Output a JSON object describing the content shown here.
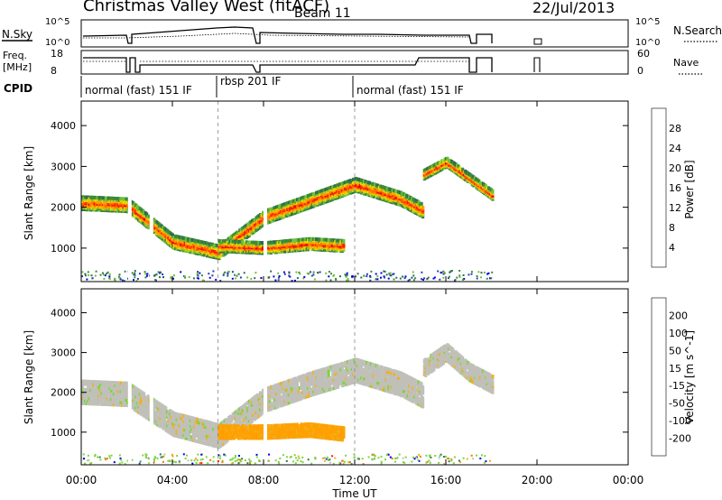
{
  "header": {
    "title": "Christmas Valley West (fitACF)",
    "beam": "Beam 11",
    "date": "22/Jul/2013"
  },
  "panels": {
    "nsky": {
      "left_label": "N.Sky",
      "right_label": "N.Search",
      "left_ticks": [
        "10^5",
        "10^0"
      ],
      "right_ticks": [
        "10^5",
        "10^0"
      ]
    },
    "freq": {
      "left_label_1": "Freq.",
      "left_label_2": "[MHz]",
      "right_label": "Nave",
      "left_ticks": [
        "18",
        "8"
      ],
      "right_ticks": [
        "60",
        "0"
      ]
    },
    "cpid": {
      "label": "CPID",
      "modes": [
        {
          "name": "normal (fast) 151 IF",
          "start_hour": 0,
          "end_hour": 6
        },
        {
          "name": "rbsp 201 IF",
          "start_hour": 6,
          "end_hour": 12
        },
        {
          "name": "normal (fast) 151 IF",
          "start_hour": 12,
          "end_hour": 24
        }
      ]
    }
  },
  "chart_data": [
    {
      "type": "heatmap",
      "title": "Power",
      "ylabel": "Slant Range [km]",
      "xlabel": "Time UT",
      "xlim": [
        0,
        24
      ],
      "ylim": [
        180,
        4600
      ],
      "yticks": [
        "1000",
        "2000",
        "3000",
        "4000"
      ],
      "colorbar_label": "Power [dB]",
      "colorbar_ticks": [
        "28",
        "24",
        "20",
        "16",
        "12",
        "8",
        "4"
      ],
      "colorbar_colors": [
        "#0000e6",
        "#2040b0",
        "#2e6b4f",
        "#3a8a3a",
        "#70c13a",
        "#e6d800",
        "#ffa000",
        "#ff6a00",
        "#ff1a00",
        "#e00000"
      ],
      "bands": [
        {
          "x": [
            0.0,
            2.0,
            4.0,
            6.0,
            8.0,
            10.0,
            12.0,
            14.0,
            15.0
          ],
          "y": [
            2100,
            2050,
            1150,
            900,
            1750,
            2150,
            2550,
            2200,
            1900
          ],
          "width_km": 300
        },
        {
          "x": [
            6.0,
            8.0,
            10.0,
            11.5
          ],
          "y": [
            1050,
            1000,
            1100,
            1050
          ],
          "width_km": 250
        },
        {
          "x": [
            15.0,
            16.0,
            17.0,
            18.0
          ],
          "y": [
            2800,
            3100,
            2700,
            2300
          ],
          "width_km": 200
        }
      ]
    },
    {
      "type": "heatmap",
      "title": "Velocity",
      "ylabel": "Slant Range [km]",
      "xlabel": "Time UT",
      "xlim": [
        0,
        24
      ],
      "ylim": [
        180,
        4600
      ],
      "yticks": [
        "1000",
        "2000",
        "3000",
        "4000"
      ],
      "xticks": [
        "00:00",
        "04:00",
        "08:00",
        "12:00",
        "16:00",
        "20:00",
        "00:00"
      ],
      "colorbar_label": "Velocity [m s^-1]",
      "colorbar_ticks": [
        "200",
        "100",
        "50",
        "15",
        "-15",
        "-50",
        "-100",
        "-200"
      ],
      "colorbar_colors": [
        "#ff1a00",
        "#ff7000",
        "#ffa000",
        "#f0b020",
        "#c0c0b8",
        "#7cd43c",
        "#40a040",
        "#2a7a4a",
        "#1a4ad0",
        "#0000e6"
      ],
      "bands": [
        {
          "x": [
            0.0,
            2.0,
            4.0,
            6.0,
            8.0,
            10.0,
            12.0,
            14.0,
            15.0
          ],
          "y": [
            2000,
            1950,
            1200,
            900,
            1800,
            2200,
            2550,
            2200,
            1900
          ],
          "width_km": 550,
          "value": "-15..15"
        },
        {
          "x": [
            6.0,
            8.0,
            10.0,
            11.5
          ],
          "y": [
            1000,
            1000,
            1050,
            950
          ],
          "width_km": 300,
          "value": "-50"
        },
        {
          "x": [
            15.0,
            16.0,
            17.0,
            18.0
          ],
          "y": [
            2600,
            3000,
            2500,
            2200
          ],
          "width_km": 400,
          "value": "-15..15"
        }
      ]
    }
  ],
  "xaxis": {
    "ticks": [
      "00:00",
      "04:00",
      "08:00",
      "12:00",
      "16:00",
      "20:00",
      "00:00"
    ],
    "label": "Time UT"
  }
}
